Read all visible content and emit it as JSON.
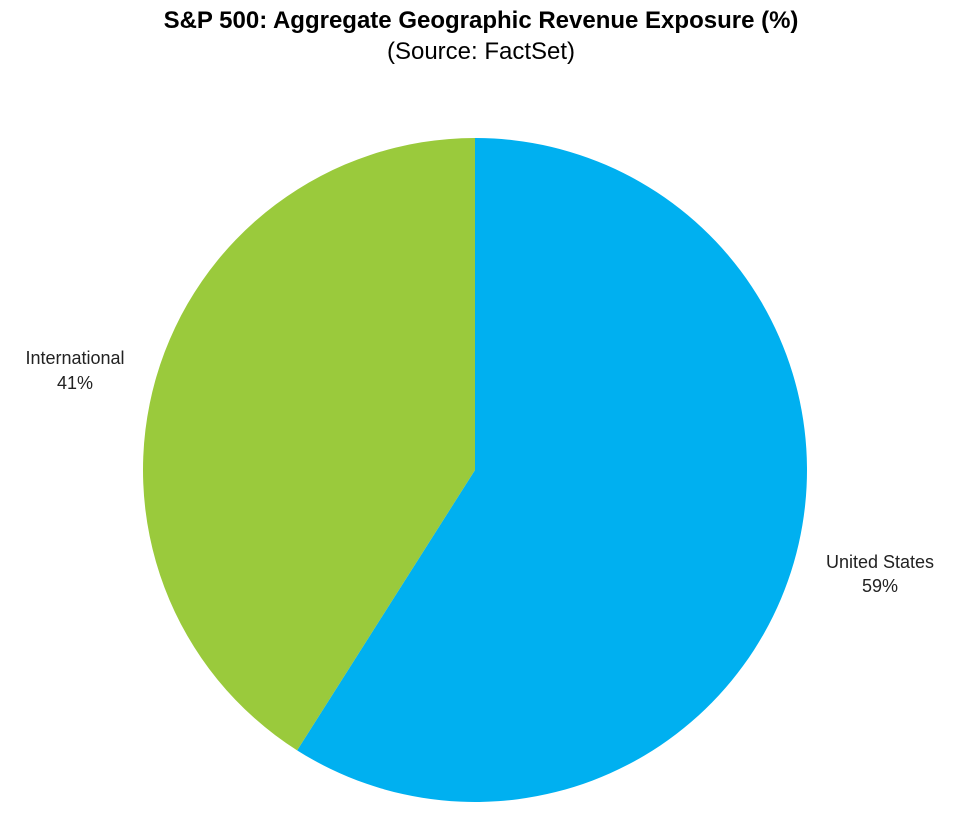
{
  "chart_data": {
    "type": "pie",
    "title": "S&P 500: Aggregate Geographic Revenue Exposure (%)",
    "subtitle": "(Source: FactSet)",
    "slices": [
      {
        "name": "United States",
        "value": 59,
        "label": "59%",
        "color": "#00B0F0"
      },
      {
        "name": "International",
        "value": 41,
        "label": "41%",
        "color": "#9ACA3C"
      }
    ],
    "start_angle_deg": 0,
    "direction": "clockwise",
    "legend": "none"
  }
}
